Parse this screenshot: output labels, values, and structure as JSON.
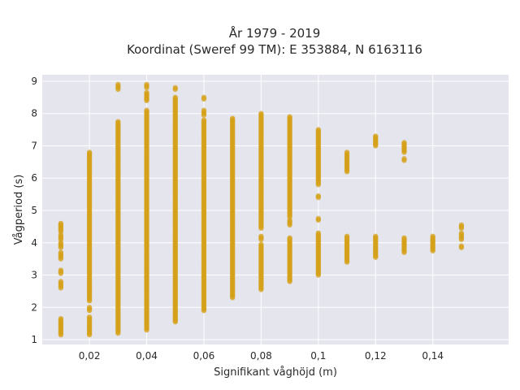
{
  "chart_data": {
    "type": "scatter",
    "title_lines": [
      "År 1979 - 2019",
      "Koordinat (Sweref 99 TM): E 353884, N 6163116"
    ],
    "xlabel": "Signifikant våghöjd (m)",
    "ylabel": "Vågperiod (s)",
    "xlim": [
      0.0035,
      0.1665
    ],
    "ylim": [
      0.85,
      9.2
    ],
    "x_ticks": [
      0.02,
      0.04,
      0.06,
      0.08,
      0.1,
      0.12,
      0.14
    ],
    "x_tick_labels": [
      "0,02",
      "0,04",
      "0,06",
      "0,08",
      "0,1",
      "0,12",
      "0,14"
    ],
    "y_ticks": [
      1,
      2,
      3,
      4,
      5,
      6,
      7,
      8,
      9
    ],
    "y_tick_labels": [
      "1",
      "2",
      "3",
      "4",
      "5",
      "6",
      "7",
      "8",
      "9"
    ],
    "grid": true,
    "legend": "none",
    "colors": {
      "marker": "#D4A017",
      "plot_bg": "#E5E5EE",
      "grid": "#ffffff"
    },
    "series": [
      {
        "x": 0.01,
        "ranges": [
          [
            1.15,
            1.65
          ],
          [
            2.6,
            2.8
          ],
          [
            3.05,
            3.15
          ],
          [
            3.5,
            3.7
          ],
          [
            3.85,
            4.0
          ],
          [
            4.1,
            4.25
          ],
          [
            4.35,
            4.6
          ]
        ]
      },
      {
        "x": 0.02,
        "ranges": [
          [
            1.15,
            1.7
          ],
          [
            1.9,
            2.0
          ],
          [
            2.2,
            6.8
          ]
        ]
      },
      {
        "x": 0.03,
        "ranges": [
          [
            1.2,
            7.75
          ],
          [
            8.75,
            8.9
          ]
        ]
      },
      {
        "x": 0.04,
        "ranges": [
          [
            1.3,
            8.1
          ],
          [
            8.4,
            8.65
          ],
          [
            8.8,
            8.9
          ]
        ]
      },
      {
        "x": 0.05,
        "ranges": [
          [
            1.55,
            8.5
          ],
          [
            8.75,
            8.8
          ]
        ]
      },
      {
        "x": 0.06,
        "ranges": [
          [
            1.9,
            7.8
          ],
          [
            7.95,
            8.1
          ],
          [
            8.45,
            8.5
          ]
        ]
      },
      {
        "x": 0.07,
        "ranges": [
          [
            2.3,
            7.85
          ]
        ]
      },
      {
        "x": 0.08,
        "ranges": [
          [
            2.55,
            3.95
          ],
          [
            4.1,
            4.2
          ],
          [
            4.45,
            8.0
          ]
        ]
      },
      {
        "x": 0.09,
        "ranges": [
          [
            2.8,
            4.15
          ],
          [
            4.55,
            4.7
          ],
          [
            4.8,
            7.9
          ]
        ]
      },
      {
        "x": 0.1,
        "ranges": [
          [
            3.0,
            4.3
          ],
          [
            4.7,
            4.75
          ],
          [
            5.4,
            5.45
          ],
          [
            5.8,
            6.3
          ],
          [
            6.35,
            7.5
          ]
        ]
      },
      {
        "x": 0.11,
        "ranges": [
          [
            3.4,
            4.2
          ],
          [
            6.2,
            6.8
          ]
        ]
      },
      {
        "x": 0.12,
        "ranges": [
          [
            3.55,
            4.2
          ],
          [
            7.0,
            7.3
          ]
        ]
      },
      {
        "x": 0.13,
        "ranges": [
          [
            3.7,
            4.15
          ],
          [
            6.55,
            6.6
          ],
          [
            6.8,
            7.1
          ]
        ]
      },
      {
        "x": 0.14,
        "ranges": [
          [
            3.75,
            4.2
          ]
        ]
      },
      {
        "x": 0.15,
        "ranges": [
          [
            3.85,
            3.9
          ],
          [
            4.1,
            4.3
          ],
          [
            4.45,
            4.55
          ]
        ]
      }
    ]
  }
}
